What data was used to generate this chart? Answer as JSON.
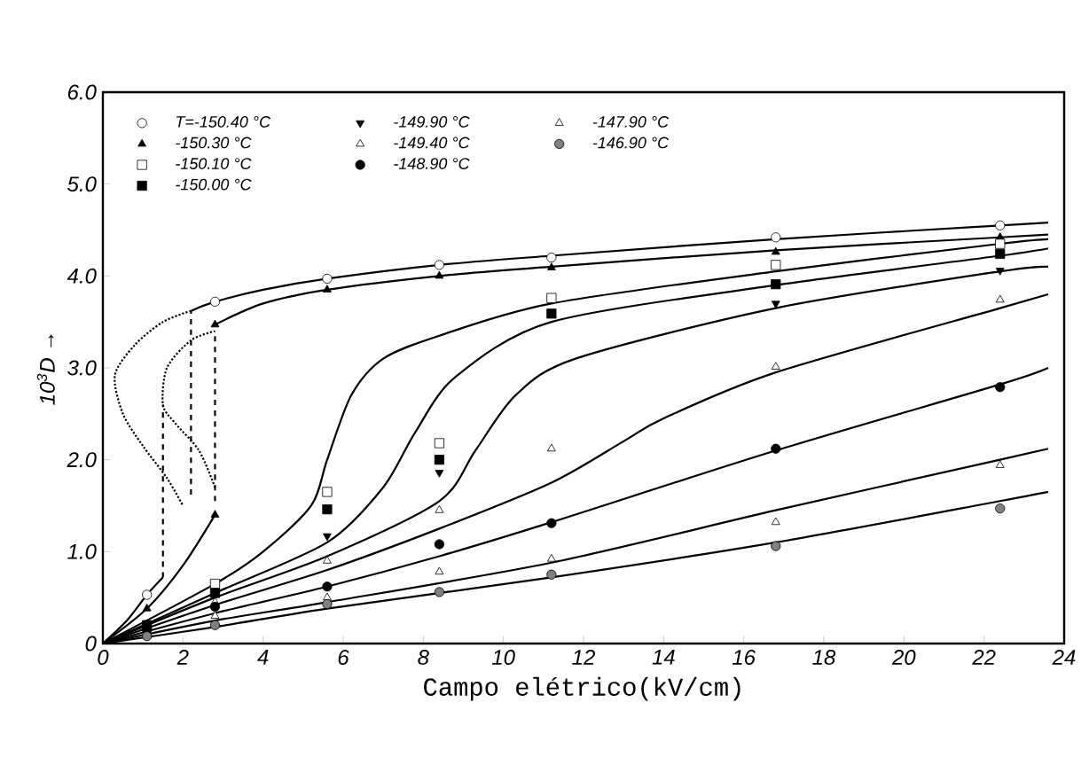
{
  "chart_data": {
    "type": "scatter",
    "xlabel": "Campo elétrico(kV/cm)",
    "ylabel": "10$^{3}$D →",
    "xlim": [
      0,
      24
    ],
    "ylim": [
      0,
      6
    ],
    "xticks": [
      0,
      2,
      4,
      6,
      8,
      10,
      12,
      14,
      16,
      18,
      20,
      22,
      24
    ],
    "yticks": [
      0,
      {
        "value": 1,
        "label": "1.0"
      },
      {
        "value": 2,
        "label": "2.0"
      },
      {
        "value": 3,
        "label": "3.0"
      },
      {
        "value": 4,
        "label": "4.0"
      },
      {
        "value": 5,
        "label": "5.0"
      },
      {
        "value": 6,
        "label": "6.0"
      }
    ],
    "legend": "top left",
    "series": [
      {
        "name": "T=-150.40 °C",
        "color": "#ffffff",
        "marker": "circle",
        "x": [
          1.1,
          2.8,
          5.6,
          8.4,
          11.2,
          16.8,
          22.4
        ],
        "values": [
          0.53,
          3.72,
          3.97,
          4.12,
          4.2,
          4.42,
          4.55
        ]
      },
      {
        "name": "-150.30 °C",
        "color": "#000000",
        "marker": "triangle",
        "x": [
          1.1,
          2.8,
          2.8,
          5.6,
          8.4,
          11.2,
          16.8,
          22.4
        ],
        "values": [
          0.38,
          1.4,
          3.47,
          3.85,
          4.0,
          4.09,
          4.26,
          4.42
        ]
      },
      {
        "name": "-150.10 °C",
        "color": "#ffffff",
        "marker": "square",
        "x": [
          2.8,
          5.6,
          8.4,
          11.2,
          16.8,
          22.4
        ],
        "values": [
          0.65,
          1.65,
          2.18,
          3.76,
          4.12,
          4.35
        ]
      },
      {
        "name": "-150.00 °C",
        "color": "#000000",
        "marker": "square",
        "x": [
          1.1,
          2.8,
          5.6,
          8.4,
          11.2,
          16.8,
          22.4
        ],
        "values": [
          0.2,
          0.55,
          1.46,
          2.0,
          3.59,
          3.91,
          4.24
        ]
      },
      {
        "name": "-149.90 °C",
        "color": "#000000",
        "marker": "triangle down",
        "x": [
          5.6,
          8.4,
          16.8,
          22.4
        ],
        "values": [
          1.17,
          1.86,
          3.7,
          4.06
        ]
      },
      {
        "name": "-149.40 °C",
        "color": "#ffffff",
        "marker": "triangle",
        "x": [
          2.8,
          5.6,
          8.4,
          11.2,
          16.8,
          22.4
        ],
        "values": [
          0.45,
          0.9,
          1.45,
          2.12,
          3.01,
          3.74
        ]
      },
      {
        "name": "-148.90 °C",
        "color": "#000000",
        "marker": "circle",
        "x": [
          1.1,
          2.8,
          5.6,
          8.4,
          11.2,
          16.8,
          22.4
        ],
        "values": [
          0.15,
          0.4,
          0.62,
          1.08,
          1.31,
          2.12,
          2.79
        ]
      },
      {
        "name": "-147.90 °C",
        "color": "#ffffff",
        "marker": "triangle",
        "x": [
          2.8,
          5.6,
          8.4,
          11.2,
          16.8,
          22.4
        ],
        "values": [
          0.3,
          0.5,
          0.78,
          0.92,
          1.32,
          1.94
        ]
      },
      {
        "name": "-146.90 °C",
        "color": "#808080",
        "marker": "circle",
        "x": [
          1.1,
          2.8,
          5.6,
          8.4,
          11.2,
          16.8,
          22.4
        ],
        "values": [
          0.08,
          0.2,
          0.43,
          0.56,
          0.75,
          1.06,
          1.47
        ]
      },
      {
        "type": "line",
        "color": "#000000",
        "line_style": "solid",
        "x": [
          2.2,
          2.8,
          4,
          5.6,
          8.4,
          11.2,
          16.8,
          22.4,
          23.6
        ],
        "values": [
          3.62,
          3.72,
          3.85,
          3.97,
          4.12,
          4.22,
          4.4,
          4.55,
          4.58
        ]
      },
      {
        "type": "line",
        "color": "#000000",
        "line_style": "solid",
        "x": [
          2.8,
          4,
          5.6,
          8.4,
          11.2,
          16.8,
          22.4,
          23.6
        ],
        "values": [
          3.47,
          3.7,
          3.85,
          4.0,
          4.1,
          4.28,
          4.42,
          4.45
        ]
      },
      {
        "type": "line",
        "color": "#000000",
        "line_style": "solid",
        "x": [
          0,
          0.6,
          1.1,
          1.5
        ],
        "values": [
          0,
          0.25,
          0.53,
          0.72
        ]
      },
      {
        "type": "line",
        "color": "#000000",
        "line_style": "dashed",
        "x": [
          1.5,
          1.5
        ],
        "values": [
          0.72,
          2.6
        ]
      },
      {
        "type": "line",
        "color": "#000000",
        "line_style": "dotted",
        "x": [
          2.2,
          1.5,
          0.8,
          0.3,
          0.5,
          1.0,
          1.6,
          2.0
        ],
        "values": [
          3.62,
          3.5,
          3.25,
          2.92,
          2.5,
          2.15,
          1.8,
          1.5
        ]
      },
      {
        "type": "line",
        "color": "#000000",
        "line_style": "dashed",
        "x": [
          2.2,
          2.2
        ],
        "values": [
          1.62,
          3.62
        ]
      },
      {
        "type": "line",
        "color": "#000000",
        "line_style": "solid",
        "x": [
          0,
          1.1,
          2,
          2.8
        ],
        "values": [
          0,
          0.38,
          0.85,
          1.4
        ]
      },
      {
        "type": "line",
        "color": "#000000",
        "line_style": "dashed",
        "x": [
          2.8,
          2.8
        ],
        "values": [
          1.55,
          3.35
        ]
      },
      {
        "type": "line",
        "color": "#000000",
        "line_style": "dotted",
        "x": [
          2.8,
          2.4,
          1.8,
          1.5,
          1.6,
          2.2,
          2.8
        ],
        "values": [
          1.7,
          2.1,
          2.4,
          2.6,
          3.0,
          3.3,
          3.4
        ]
      },
      {
        "type": "line",
        "color": "#000000",
        "line_style": "solid",
        "x": [
          0,
          2.8,
          4,
          5.2,
          5.6,
          6.2,
          7,
          8.4,
          11.2,
          16.8,
          22.4,
          23.6
        ],
        "values": [
          0,
          0.65,
          1.0,
          1.5,
          2.0,
          2.7,
          3.1,
          3.35,
          3.7,
          4.05,
          4.35,
          4.4
        ]
      },
      {
        "type": "line",
        "color": "#000000",
        "line_style": "solid",
        "x": [
          0,
          2.8,
          5.6,
          7,
          7.8,
          8.8,
          11.2,
          16.8,
          22.4,
          23.6
        ],
        "values": [
          0,
          0.55,
          1.1,
          1.7,
          2.3,
          2.9,
          3.5,
          3.9,
          4.22,
          4.3
        ]
      },
      {
        "type": "line",
        "color": "#000000",
        "line_style": "solid",
        "x": [
          0,
          2.8,
          5.6,
          8.4,
          9.3,
          10.3,
          11.8,
          16.8,
          22.4,
          23.6
        ],
        "values": [
          0,
          0.5,
          0.95,
          1.55,
          2.1,
          2.7,
          3.1,
          3.65,
          4.05,
          4.1
        ]
      },
      {
        "type": "line",
        "color": "#000000",
        "line_style": "solid",
        "x": [
          0,
          2.8,
          5.6,
          8.4,
          11.2,
          13,
          14,
          16.8,
          22.4,
          23.6
        ],
        "values": [
          0,
          0.42,
          0.8,
          1.25,
          1.75,
          2.2,
          2.45,
          2.95,
          3.65,
          3.8
        ]
      },
      {
        "type": "line",
        "color": "#000000",
        "line_style": "solid",
        "x": [
          0,
          2.8,
          5.6,
          8.4,
          11.2,
          16.8,
          22.4,
          23.6
        ],
        "values": [
          0,
          0.33,
          0.62,
          0.95,
          1.32,
          2.1,
          2.82,
          3.0
        ]
      },
      {
        "type": "line",
        "color": "#000000",
        "line_style": "solid",
        "x": [
          0,
          2.8,
          5.6,
          11.2,
          16.8,
          22.4,
          23.6
        ],
        "values": [
          0,
          0.25,
          0.45,
          0.88,
          1.45,
          2.0,
          2.12
        ]
      },
      {
        "type": "line",
        "color": "#000000",
        "line_style": "solid",
        "x": [
          0,
          2.8,
          5.6,
          11.2,
          16.8,
          22.4,
          23.6
        ],
        "values": [
          0,
          0.18,
          0.38,
          0.72,
          1.1,
          1.55,
          1.65
        ]
      }
    ]
  }
}
